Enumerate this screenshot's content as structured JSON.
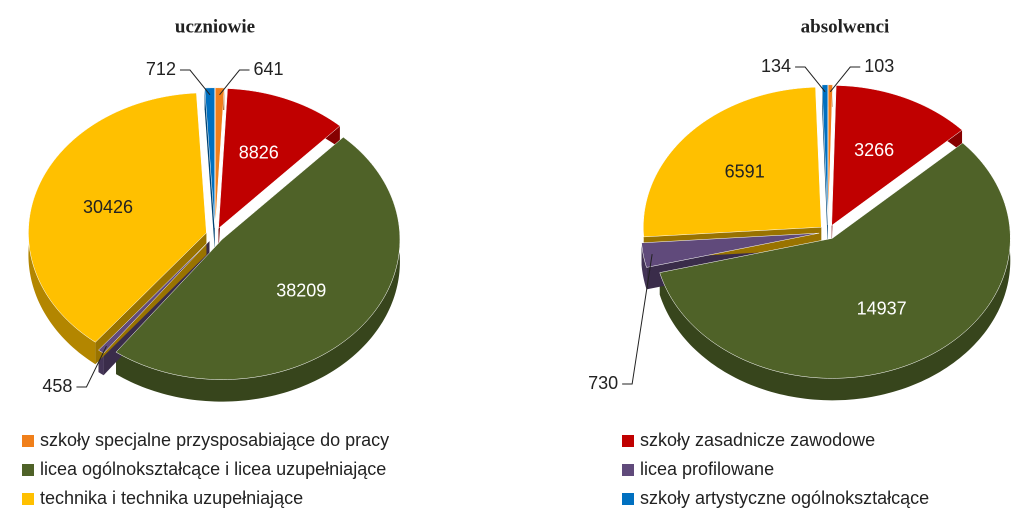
{
  "chart_data": {
    "type": "pie",
    "categories": [
      "szkoły specjalne przysposabiające do pracy",
      "szkoły zasadnicze zawodowe",
      "licea ogólnokształcące i licea uzupełniające",
      "licea profilowane",
      "technika i technika uzupełniające",
      "szkoły artystyczne ogólnokształcące"
    ],
    "colors": [
      "#f07f1a",
      "#c00000",
      "#4f6228",
      "#604a7b",
      "#ffc000",
      "#0070c0"
    ],
    "charts": [
      {
        "title": "uczniowie",
        "values": [
          641,
          8826,
          38209,
          458,
          30426,
          712
        ]
      },
      {
        "title": "absolwenci",
        "values": [
          103,
          3266,
          14937,
          730,
          6591,
          134
        ]
      }
    ]
  }
}
